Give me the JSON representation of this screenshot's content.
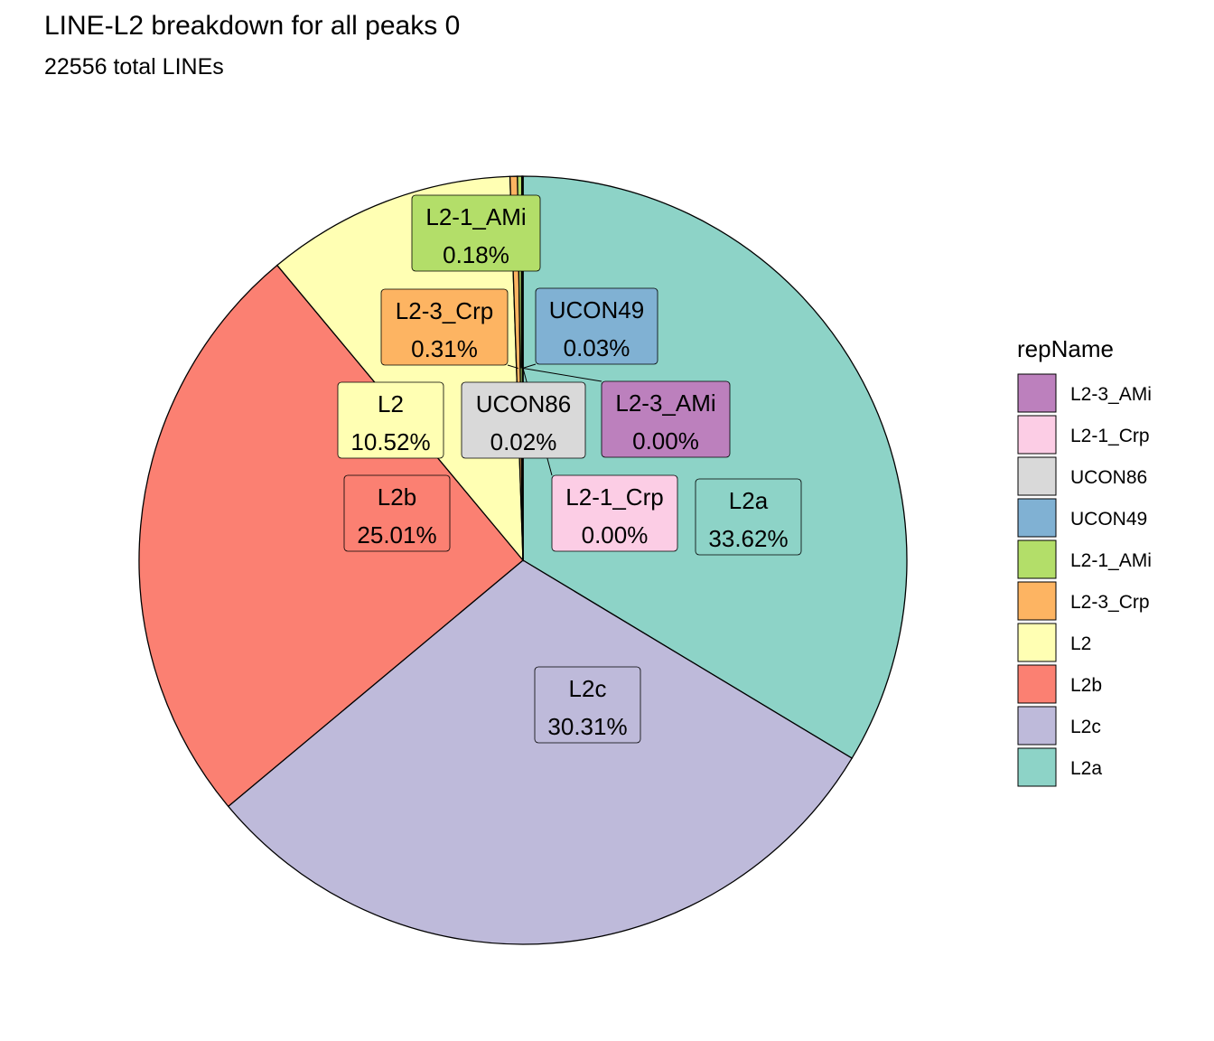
{
  "chart_data": {
    "type": "pie",
    "title": "LINE-L2 breakdown for all peaks 0",
    "subtitle": "22556  total LINEs",
    "legend_title": "repName",
    "legend_position": "right",
    "slices": [
      {
        "name": "L2a",
        "value": 33.62,
        "label": "33.62%",
        "color": "#8DD3C7"
      },
      {
        "name": "L2c",
        "value": 30.31,
        "label": "30.31%",
        "color": "#BEBADA"
      },
      {
        "name": "L2b",
        "value": 25.01,
        "label": "25.01%",
        "color": "#FB8072"
      },
      {
        "name": "L2",
        "value": 10.52,
        "label": "10.52%",
        "color": "#FFFFB3"
      },
      {
        "name": "L2-3_Crp",
        "value": 0.31,
        "label": "0.31%",
        "color": "#FDB462"
      },
      {
        "name": "L2-1_AMi",
        "value": 0.18,
        "label": "0.18%",
        "color": "#B3DE69"
      },
      {
        "name": "UCON49",
        "value": 0.03,
        "label": "0.03%",
        "color": "#80B1D3"
      },
      {
        "name": "UCON86",
        "value": 0.02,
        "label": "0.02%",
        "color": "#D9D9D9"
      },
      {
        "name": "L2-1_Crp",
        "value": 0.0,
        "label": "0.00%",
        "color": "#FCCDE5"
      },
      {
        "name": "L2-3_AMi",
        "value": 0.0,
        "label": "0.00%",
        "color": "#BC80BD"
      }
    ],
    "legend_order": [
      "L2-3_AMi",
      "L2-1_Crp",
      "UCON86",
      "UCON49",
      "L2-1_AMi",
      "L2-3_Crp",
      "L2",
      "L2b",
      "L2c",
      "L2a"
    ]
  }
}
